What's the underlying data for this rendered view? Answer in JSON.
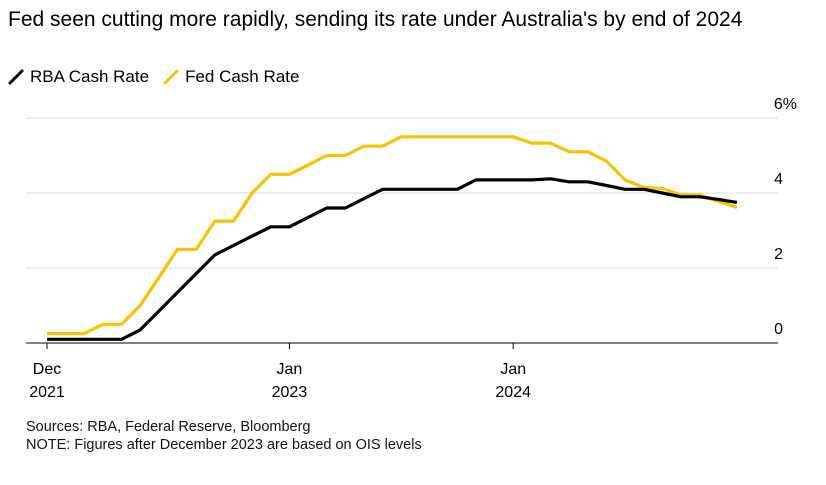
{
  "header": {
    "title": "Fed seen cutting more rapidly, sending its rate under Australia's by end of 2024"
  },
  "legend": [
    {
      "label": "RBA Cash Rate",
      "color": "#000000"
    },
    {
      "label": "Fed Cash Rate",
      "color": "#f5c400"
    }
  ],
  "footer": {
    "sources": "Sources: RBA, Federal Reserve, Bloomberg",
    "note": "NOTE: Figures after December 2023 are based on OIS levels"
  },
  "chart_data": {
    "type": "line",
    "title": "Fed seen cutting more rapidly, sending its rate under Australia's by end of 2024",
    "xlabel": "",
    "ylabel": "",
    "x_unit": "months since Dec 2021",
    "ylim": [
      0,
      6
    ],
    "yticks": [
      {
        "value": 0,
        "label": "0"
      },
      {
        "value": 2,
        "label": "2"
      },
      {
        "value": 4,
        "label": "4"
      },
      {
        "value": 6,
        "label": "6%"
      }
    ],
    "xticks": [
      {
        "x": 0,
        "line1": "Dec",
        "line2": "2021"
      },
      {
        "x": 13,
        "line1": "Jan",
        "line2": "2023"
      },
      {
        "x": 25,
        "line1": "Jan",
        "line2": "2024"
      }
    ],
    "grid": true,
    "legend_position": "top-left",
    "series": [
      {
        "name": "RBA Cash Rate",
        "color": "#000000",
        "points": [
          [
            0,
            0.1
          ],
          [
            1,
            0.1
          ],
          [
            2,
            0.1
          ],
          [
            3,
            0.1
          ],
          [
            4,
            0.1
          ],
          [
            5,
            0.35
          ],
          [
            6,
            0.85
          ],
          [
            7,
            1.35
          ],
          [
            8,
            1.85
          ],
          [
            9,
            2.35
          ],
          [
            10,
            2.6
          ],
          [
            11,
            2.85
          ],
          [
            12,
            3.1
          ],
          [
            13,
            3.1
          ],
          [
            14,
            3.35
          ],
          [
            15,
            3.6
          ],
          [
            16,
            3.6
          ],
          [
            17,
            3.85
          ],
          [
            18,
            4.1
          ],
          [
            19,
            4.1
          ],
          [
            20,
            4.1
          ],
          [
            21,
            4.1
          ],
          [
            22,
            4.1
          ],
          [
            23,
            4.35
          ],
          [
            24,
            4.35
          ],
          [
            25,
            4.35
          ],
          [
            26,
            4.35
          ],
          [
            27,
            4.38
          ],
          [
            28,
            4.3
          ],
          [
            29,
            4.3
          ],
          [
            30,
            4.2
          ],
          [
            31,
            4.1
          ],
          [
            32,
            4.1
          ],
          [
            33,
            4.0
          ],
          [
            34,
            3.9
          ],
          [
            35,
            3.9
          ],
          [
            36,
            3.83
          ],
          [
            37,
            3.75
          ]
        ]
      },
      {
        "name": "Fed Cash Rate",
        "color": "#f5c400",
        "points": [
          [
            0,
            0.25
          ],
          [
            1,
            0.25
          ],
          [
            2,
            0.25
          ],
          [
            3,
            0.5
          ],
          [
            4,
            0.5
          ],
          [
            5,
            1.0
          ],
          [
            6,
            1.75
          ],
          [
            7,
            2.5
          ],
          [
            8,
            2.5
          ],
          [
            9,
            3.25
          ],
          [
            10,
            3.25
          ],
          [
            11,
            4.0
          ],
          [
            12,
            4.5
          ],
          [
            13,
            4.5
          ],
          [
            14,
            4.75
          ],
          [
            15,
            5.0
          ],
          [
            16,
            5.0
          ],
          [
            17,
            5.25
          ],
          [
            18,
            5.25
          ],
          [
            19,
            5.5
          ],
          [
            20,
            5.5
          ],
          [
            21,
            5.5
          ],
          [
            22,
            5.5
          ],
          [
            23,
            5.5
          ],
          [
            24,
            5.5
          ],
          [
            25,
            5.5
          ],
          [
            26,
            5.33
          ],
          [
            27,
            5.33
          ],
          [
            28,
            5.1
          ],
          [
            29,
            5.1
          ],
          [
            30,
            4.85
          ],
          [
            31,
            4.35
          ],
          [
            32,
            4.15
          ],
          [
            33,
            4.12
          ],
          [
            34,
            3.95
          ],
          [
            35,
            3.95
          ],
          [
            36,
            3.78
          ],
          [
            37,
            3.62
          ]
        ]
      }
    ]
  }
}
